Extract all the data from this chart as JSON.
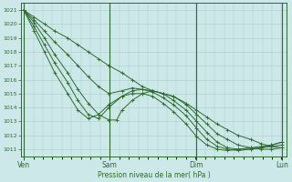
{
  "title": "",
  "xlabel": "Pression niveau de la mer( hPa )",
  "background_color": "#cce8e8",
  "grid_color": "#aacccc",
  "line_color": "#2d6b2d",
  "ylim": [
    1010.5,
    1021.5
  ],
  "yticks": [
    1011,
    1012,
    1013,
    1014,
    1015,
    1016,
    1017,
    1018,
    1019,
    1020,
    1021
  ],
  "xtick_labels": [
    "Ven",
    "Sam",
    "Dim",
    "Lun"
  ],
  "xtick_positions": [
    0,
    0.333,
    0.667,
    1.0
  ],
  "series": [
    {
      "x": [
        0.0,
        0.04,
        0.08,
        0.12,
        0.17,
        0.21,
        0.25,
        0.29,
        0.33,
        0.38,
        0.42,
        0.46,
        0.5,
        0.54,
        0.58,
        0.63,
        0.67,
        0.71,
        0.75,
        0.79,
        0.83,
        0.88,
        0.92,
        0.96,
        1.0
      ],
      "y": [
        1021.0,
        1020.5,
        1020.0,
        1019.5,
        1019.0,
        1018.5,
        1018.0,
        1017.5,
        1017.0,
        1016.5,
        1016.0,
        1015.5,
        1015.2,
        1015.0,
        1014.8,
        1014.3,
        1013.8,
        1013.3,
        1012.8,
        1012.4,
        1012.0,
        1011.7,
        1011.4,
        1011.2,
        1011.1
      ]
    },
    {
      "x": [
        0.0,
        0.04,
        0.08,
        0.12,
        0.17,
        0.21,
        0.25,
        0.29,
        0.33,
        0.38,
        0.42,
        0.46,
        0.5,
        0.54,
        0.58,
        0.63,
        0.67,
        0.71,
        0.75,
        0.79,
        0.83,
        0.88,
        0.92,
        0.96,
        1.0
      ],
      "y": [
        1021.0,
        1020.3,
        1019.5,
        1018.7,
        1017.8,
        1017.0,
        1016.2,
        1015.5,
        1015.0,
        1015.2,
        1015.4,
        1015.3,
        1015.2,
        1015.0,
        1014.8,
        1014.2,
        1013.5,
        1012.8,
        1012.1,
        1011.7,
        1011.3,
        1011.1,
        1011.0,
        1011.0,
        1011.1
      ]
    },
    {
      "x": [
        0.0,
        0.04,
        0.08,
        0.12,
        0.17,
        0.21,
        0.25,
        0.29,
        0.33,
        0.36,
        0.38,
        0.42,
        0.46,
        0.5,
        0.54,
        0.58,
        0.63,
        0.67,
        0.71,
        0.75,
        0.79,
        0.83,
        0.88,
        0.92,
        0.96,
        1.0
      ],
      "y": [
        1021.0,
        1020.1,
        1019.0,
        1017.8,
        1016.5,
        1015.3,
        1014.3,
        1013.5,
        1013.1,
        1013.1,
        1013.8,
        1014.5,
        1015.0,
        1015.2,
        1015.0,
        1014.5,
        1013.8,
        1013.0,
        1012.2,
        1011.5,
        1011.1,
        1011.0,
        1011.0,
        1011.1,
        1011.2,
        1011.3
      ]
    },
    {
      "x": [
        0.0,
        0.04,
        0.08,
        0.12,
        0.17,
        0.21,
        0.25,
        0.29,
        0.33,
        0.38,
        0.42,
        0.46,
        0.5,
        0.54,
        0.58,
        0.63,
        0.67,
        0.71,
        0.75,
        0.79,
        0.83,
        0.88,
        0.92,
        0.96,
        1.0
      ],
      "y": [
        1021.0,
        1019.8,
        1018.5,
        1017.2,
        1015.8,
        1014.5,
        1013.5,
        1013.2,
        1014.0,
        1014.8,
        1015.2,
        1015.3,
        1015.1,
        1014.7,
        1014.2,
        1013.4,
        1012.5,
        1011.7,
        1011.2,
        1011.0,
        1010.9,
        1011.0,
        1011.1,
        1011.3,
        1011.5
      ]
    },
    {
      "x": [
        0.0,
        0.04,
        0.08,
        0.12,
        0.17,
        0.21,
        0.25,
        0.29,
        0.33,
        0.38,
        0.42,
        0.46,
        0.5,
        0.54,
        0.58,
        0.63,
        0.67,
        0.71,
        0.75,
        0.79,
        0.83,
        0.88,
        0.92,
        0.96,
        1.0
      ],
      "y": [
        1021.0,
        1019.5,
        1018.0,
        1016.5,
        1015.0,
        1013.8,
        1013.2,
        1013.5,
        1014.2,
        1014.8,
        1015.0,
        1015.0,
        1014.8,
        1014.3,
        1013.7,
        1012.8,
        1011.9,
        1011.3,
        1011.0,
        1010.9,
        1011.0,
        1011.1,
        1011.2,
        1011.3,
        1011.5
      ]
    }
  ]
}
